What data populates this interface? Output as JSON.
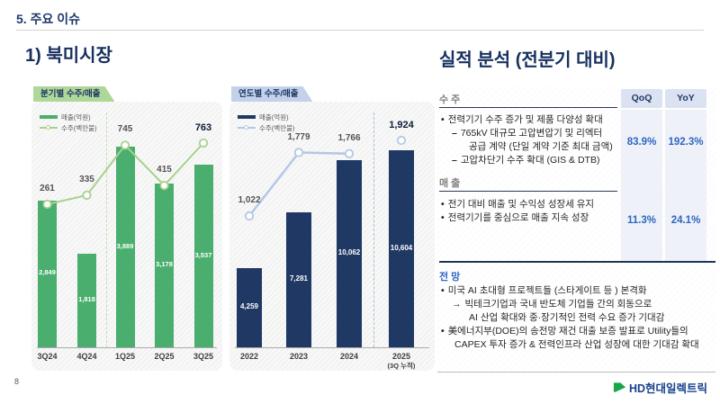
{
  "slide": {
    "header": "5. 주요 이슈",
    "section_title": "1) 북미시장",
    "page_number": "8",
    "footer_logo_text": "HD현대일렉트릭"
  },
  "analysis": {
    "title": "실적 분석 (전분기 대비)",
    "col_headers": [
      "QoQ",
      "YoY"
    ],
    "orders": {
      "label": "수 주",
      "qoq": "83.9%",
      "yoy": "192.3%",
      "bullets": [
        {
          "m": "•",
          "lv": 0,
          "t": "전력기기 수주 증가 및 제품 다양성 확대"
        },
        {
          "m": "–",
          "lv": 1,
          "t": "765kV 대규모 고압변압기 및 리엑터"
        },
        {
          "m": "",
          "lv": 2,
          "t": "공급 계약 (단일 계약 기준 최대 금액)"
        },
        {
          "m": "–",
          "lv": 1,
          "t": "고압차단기 수주 확대 (GIS & DTB)"
        }
      ]
    },
    "revenue": {
      "label": "매 출",
      "qoq": "11.3%",
      "yoy": "24.1%",
      "bullets": [
        {
          "m": "•",
          "lv": 0,
          "t": "전기 대비 매출 및 수익성 성장세 유지"
        },
        {
          "m": "•",
          "lv": 0,
          "t": "전력기기를 중심으로 매출 지속 성장"
        }
      ]
    },
    "outlook": {
      "label": "전 망",
      "bullets": [
        {
          "m": "•",
          "lv": 0,
          "t": "미국 AI 초대형 프로젝트들 (스타게이트 등 ) 본격화"
        },
        {
          "m": "→",
          "lv": 1,
          "t": "빅테크기업과 국내 반도체 기업들 간의 회동으로"
        },
        {
          "m": "",
          "lv": 2,
          "t": "AI 산업  확대와 중·장기적인 전력 수요 증가 기대감"
        },
        {
          "m": "•",
          "lv": 0,
          "t": "美에너지부(DOE)의 송전망 재건 대출 보증 발표로 Utility들의"
        },
        {
          "m": "",
          "lv": 3,
          "t": "CAPEX 투자 증가 & 전력인프라 산업 성장에 대한 기대감 확대"
        }
      ]
    }
  },
  "colors": {
    "navy": "#1f3864",
    "green_bar": "#4aae6e",
    "green_line": "#a9d18e",
    "navy_bar": "#1f3864",
    "blue_line": "#b4c7e7",
    "accent_blue": "#2f66c2",
    "col_header_bg": "#dbe3f2",
    "col_stripe_bg": "#eef1f7"
  },
  "chart_data": [
    {
      "type": "bar+line",
      "title": "분기별 수주/매출",
      "categories": [
        "3Q24",
        "4Q24",
        "1Q25",
        "2Q25",
        "3Q25"
      ],
      "series": [
        {
          "name": "매출(억원)",
          "type": "bar",
          "values": [
            2849,
            1818,
            3889,
            3178,
            3537
          ]
        },
        {
          "name": "수주(백만불)",
          "type": "line",
          "values": [
            261,
            335,
            745,
            415,
            763
          ]
        }
      ],
      "ylim_bar": [
        0,
        4800
      ],
      "ylim_line": [
        0,
        900
      ],
      "legend_position": "top-left",
      "grid": false,
      "annotations": {
        "divider_after": "4Q24"
      }
    },
    {
      "type": "bar+line",
      "title": "연도별 수주/매출",
      "categories": [
        "2022",
        "2023",
        "2024",
        "2025\n(3Q 누적)"
      ],
      "series": [
        {
          "name": "매출(억원)",
          "type": "bar",
          "values": [
            4259,
            7281,
            10062,
            10604
          ]
        },
        {
          "name": "수주(백만불)",
          "type": "line",
          "values": [
            1022,
            1779,
            1766,
            1924
          ]
        }
      ],
      "ylim_bar": [
        0,
        13000
      ],
      "ylim_line": [
        0,
        2400
      ],
      "legend_position": "top-left",
      "grid": false,
      "annotations": {
        "divider_after": "2024",
        "last_point_disconnected": true
      }
    }
  ]
}
